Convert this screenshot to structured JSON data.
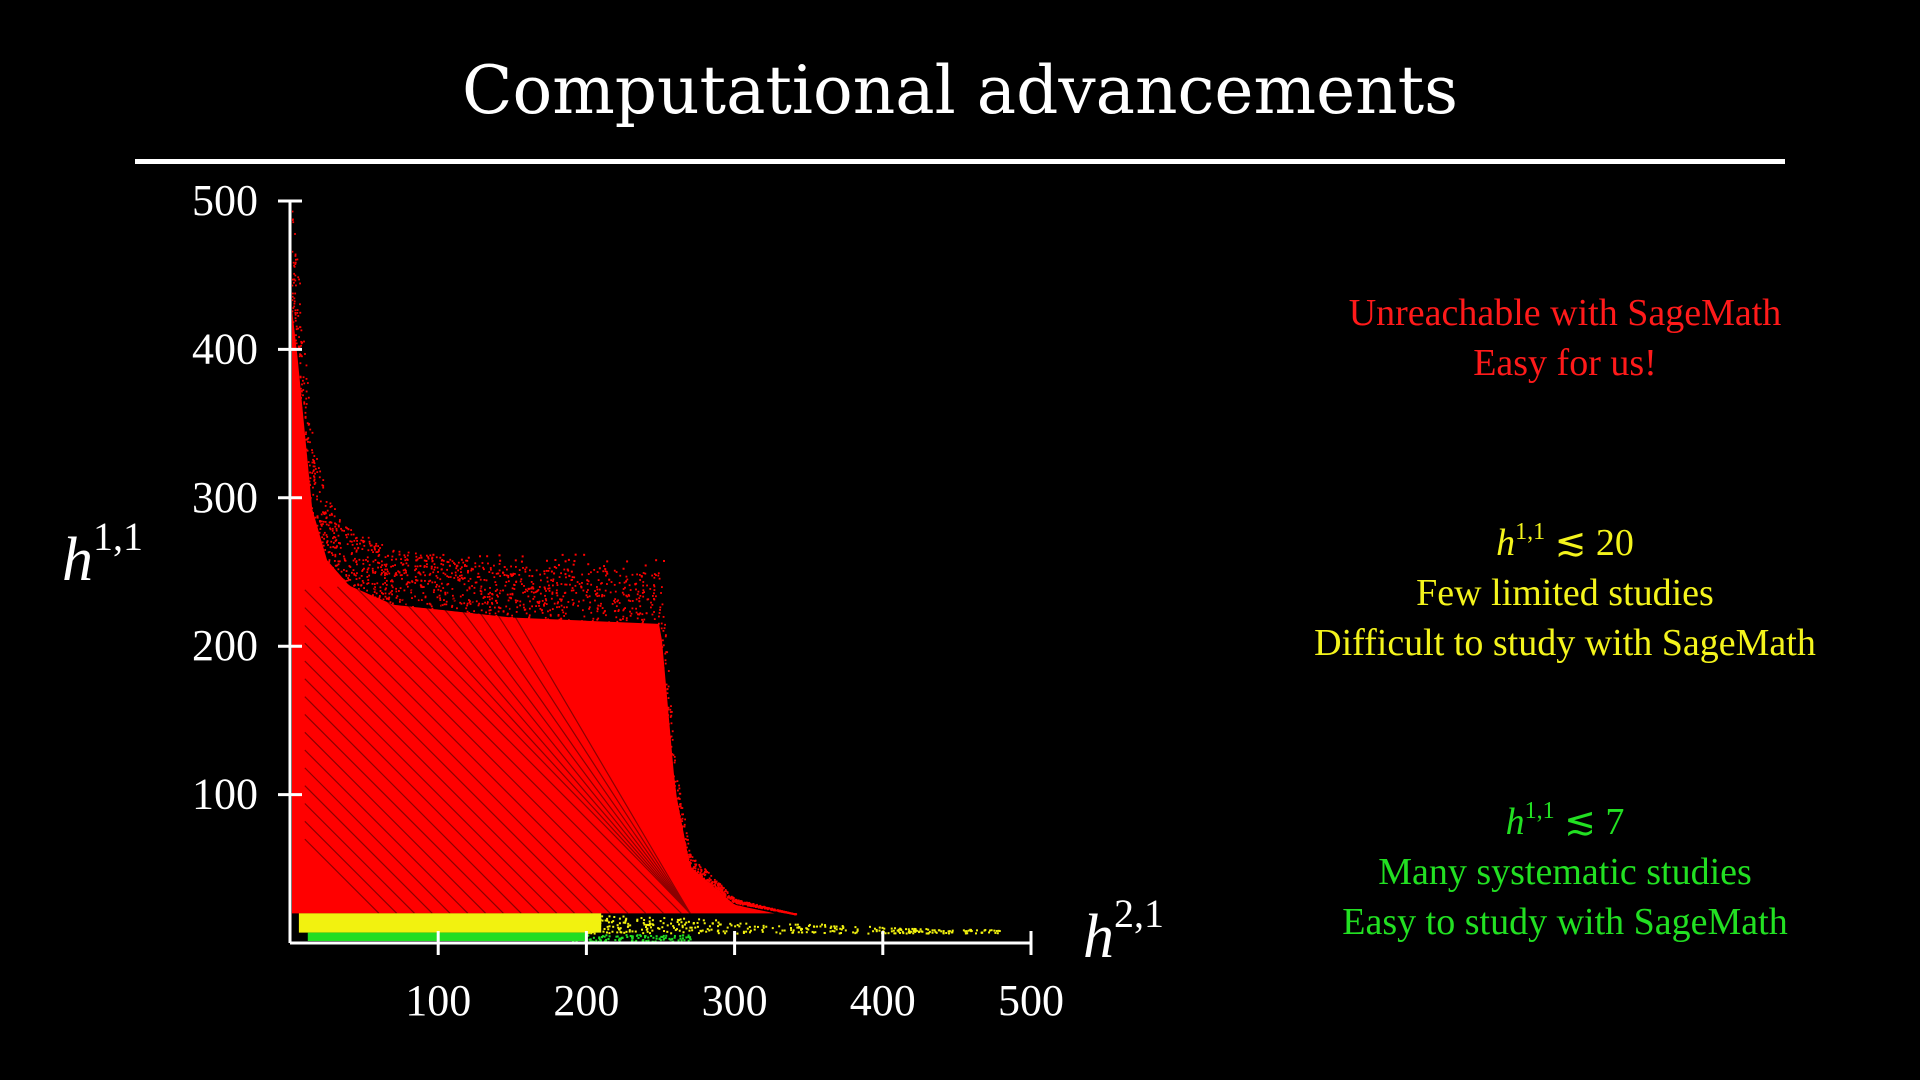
{
  "slide": {
    "title": "Computational advancements"
  },
  "annotations": {
    "red": {
      "line1": "Unreachable with SageMath",
      "line2": "Easy for us!",
      "color": "#ff1a1a"
    },
    "yellow": {
      "math_var": "h",
      "math_sup": "1,1",
      "math_rel": "≲ 20",
      "line1": "Few limited studies",
      "line2": "Difficult to study with SageMath",
      "color": "#f4f41c"
    },
    "green": {
      "math_var": "h",
      "math_sup": "1,1",
      "math_rel": "≲ 7",
      "line1": "Many systematic studies",
      "line2": "Easy to study with SageMath",
      "color": "#22e022"
    }
  },
  "chart_data": {
    "type": "scatter",
    "title": "",
    "xlabel_var": "h",
    "xlabel_sup": "2,1",
    "ylabel_var": "h",
    "ylabel_sup": "1,1",
    "xlim": [
      0,
      500
    ],
    "ylim": [
      0,
      500
    ],
    "xticks": [
      100,
      200,
      300,
      400,
      500
    ],
    "yticks": [
      100,
      200,
      300,
      400,
      500
    ],
    "xtick_labels": [
      "100",
      "200",
      "300",
      "400",
      "500"
    ],
    "ytick_labels": [
      "100",
      "200",
      "300",
      "400",
      "500"
    ],
    "grid": false,
    "legend": "none",
    "series": [
      {
        "color": "#22dd22",
        "description_range": "h11 <= 7",
        "region": {
          "x_min": 10,
          "x_max": 270,
          "y_min": 0,
          "y_max": 7
        }
      },
      {
        "color": "#f2f20f",
        "description_range": "7 < h11 <= 20",
        "region": {
          "x_min": 5,
          "x_max": 480,
          "y_min": 7,
          "y_max": 20
        }
      },
      {
        "color": "#ff0000",
        "description_range": "h11 > 20",
        "boundary": [
          [
            1,
            500
          ],
          [
            5,
            460
          ],
          [
            10,
            400
          ],
          [
            15,
            340
          ],
          [
            25,
            300
          ],
          [
            40,
            280
          ],
          [
            70,
            265
          ],
          [
            150,
            255
          ],
          [
            250,
            250
          ],
          [
            260,
            120
          ],
          [
            270,
            60
          ],
          [
            300,
            30
          ],
          [
            340,
            20
          ]
        ]
      }
    ]
  }
}
